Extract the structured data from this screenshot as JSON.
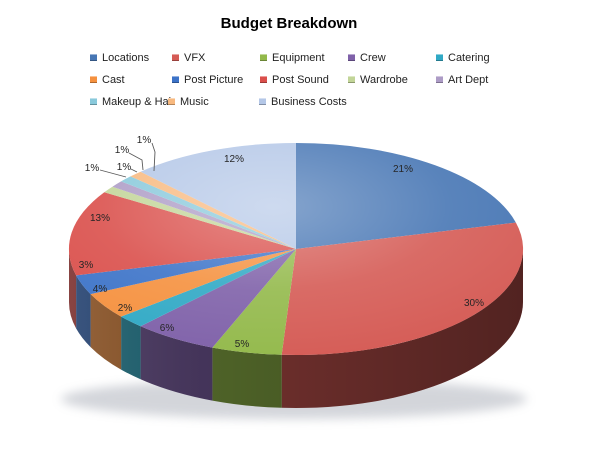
{
  "chart_data": {
    "type": "pie",
    "title": "Budget Breakdown",
    "effect": "3d",
    "direction": "clockwise",
    "start_angle_deg": 0,
    "legend_position": "top",
    "unit": "%",
    "series": [
      {
        "name": "Locations",
        "value": 21,
        "label": "21%",
        "color": "#4776B4",
        "label_pos": [
          403,
          169
        ],
        "label_inside": true
      },
      {
        "name": "VFX",
        "value": 30,
        "label": "30%",
        "color": "#D55B55",
        "label_pos": [
          474,
          303
        ],
        "label_inside": true
      },
      {
        "name": "Equipment",
        "value": 5,
        "label": "5%",
        "color": "#93B94B",
        "label_pos": [
          242,
          344
        ],
        "label_inside": true
      },
      {
        "name": "Crew",
        "value": 6,
        "label": "6%",
        "color": "#7F61A9",
        "label_pos": [
          167,
          328
        ],
        "label_inside": true
      },
      {
        "name": "Catering",
        "value": 2,
        "label": "2%",
        "color": "#30A9C5",
        "label_pos": [
          125,
          308
        ],
        "label_inside": true
      },
      {
        "name": "Cast",
        "value": 4,
        "label": "4%",
        "color": "#F5913F",
        "label_pos": [
          100,
          289
        ],
        "label_inside": true
      },
      {
        "name": "Post Picture",
        "value": 3,
        "label": "3%",
        "color": "#3C73C8",
        "label_pos": [
          86,
          265
        ],
        "label_inside": true
      },
      {
        "name": "Post Sound",
        "value": 13,
        "label": "13%",
        "color": "#DA4F4B",
        "label_pos": [
          100,
          218
        ],
        "label_inside": true
      },
      {
        "name": "Wardrobe",
        "value": 1,
        "label": "1%",
        "color": "#C2D598",
        "label_pos": [
          92,
          168
        ],
        "label_inside": false,
        "leader": [
          [
            100,
            170
          ],
          [
            126,
            177
          ]
        ]
      },
      {
        "name": "Art Dept",
        "value": 1,
        "label": "1%",
        "color": "#AD9CC6",
        "label_pos": [
          124,
          167
        ],
        "label_inside": false,
        "leader": [
          [
            131,
            169
          ],
          [
            137,
            172
          ]
        ]
      },
      {
        "name": "Makeup & Hair",
        "value": 1,
        "label": "1%",
        "color": "#89C9DB",
        "label_pos": [
          122,
          150
        ],
        "label_inside": false,
        "leader": [
          [
            129,
            153
          ],
          [
            142,
            160
          ],
          [
            143,
            170
          ]
        ]
      },
      {
        "name": "Music",
        "value": 1,
        "label": "1%",
        "color": "#F8B97F",
        "label_pos": [
          144,
          140
        ],
        "label_inside": false,
        "leader": [
          [
            152,
            143
          ],
          [
            155,
            152
          ],
          [
            154,
            171
          ]
        ]
      },
      {
        "name": "Business Costs",
        "value": 12,
        "label": "12%",
        "color": "#B4C7E7",
        "label_pos": [
          234,
          159
        ],
        "label_inside": true
      }
    ]
  }
}
